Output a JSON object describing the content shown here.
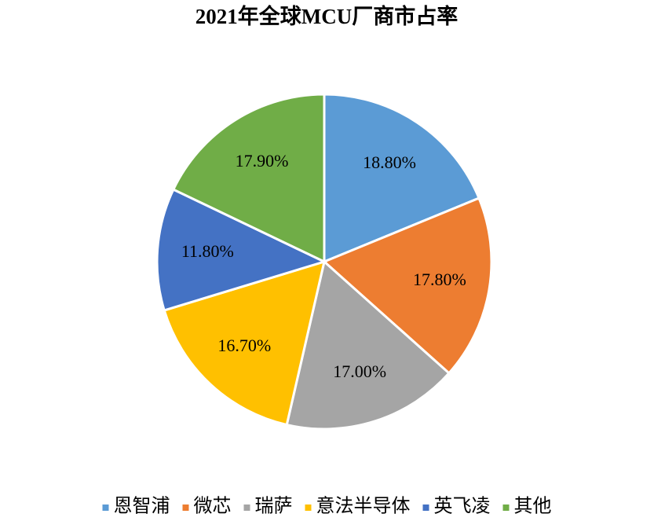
{
  "chart_data": {
    "type": "pie",
    "title": "2021年全球MCU厂商市占率",
    "categories": [
      "恩智浦",
      "微芯",
      "瑞萨",
      "意法半导体",
      "英飞凌",
      "其他"
    ],
    "values": [
      18.8,
      17.8,
      17.0,
      16.7,
      11.8,
      17.9
    ],
    "value_labels": [
      "18.80%",
      "17.80%",
      "17.00%",
      "16.70%",
      "11.80%",
      "17.90%"
    ],
    "colors": [
      "#5b9bd5",
      "#ed7d31",
      "#a5a5a5",
      "#ffc000",
      "#4472c4",
      "#70ad47"
    ],
    "legend": "bottom"
  }
}
